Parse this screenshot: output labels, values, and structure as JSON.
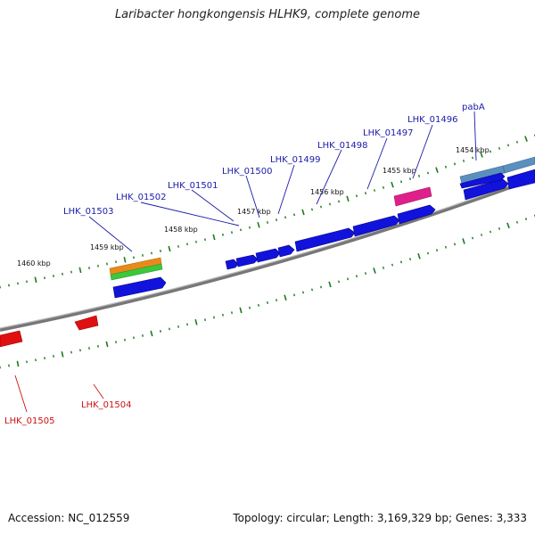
{
  "title": "Laribacter hongkongensis HLHK9, complete genome",
  "footer": {
    "accession": "Accession: NC_012559",
    "summary": "Topology: circular; Length: 3,169,329 bp; Genes: 3,333"
  },
  "colors": {
    "forward_cds": "#1010e0",
    "reverse_cds": "#e01010",
    "forward_label": "#1a1aa8",
    "reverse_label": "#cc1111",
    "tick": "#1e7a1e",
    "backbone": "#888888",
    "rrna": "#e88a1a",
    "trna": "#3cc83c",
    "ncrna": "#e0208a",
    "pseudo": "#5a8fbe"
  },
  "kbp_labels": [
    "1460 kbp",
    "1459 kbp",
    "1458 kbp",
    "1457 kbp",
    "1456 kbp",
    "1455 kbp",
    "1454 kbp"
  ],
  "forward_gene_labels": [
    "LHK_01503",
    "LHK_01502",
    "LHK_01501",
    "LHK_01500",
    "LHK_01499",
    "LHK_01498",
    "LHK_01497",
    "LHK_01496",
    "pabA"
  ],
  "reverse_gene_labels": [
    "LHK_01505",
    "LHK_01504"
  ]
}
